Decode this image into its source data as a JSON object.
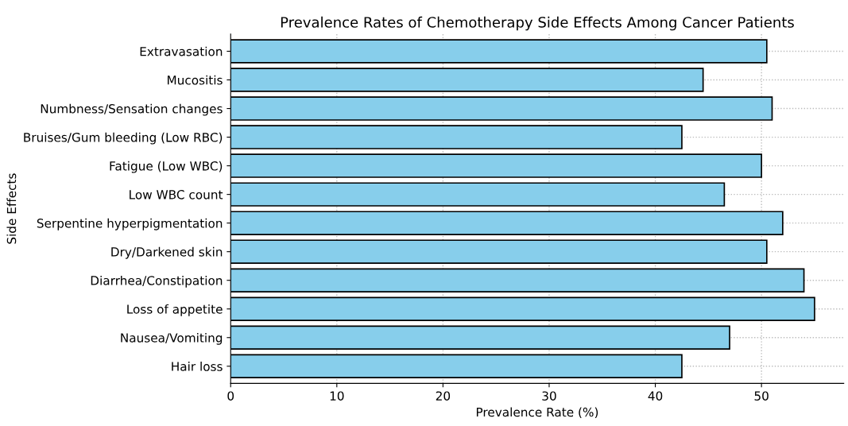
{
  "chart_data": {
    "type": "bar",
    "orientation": "horizontal",
    "title": "Prevalence Rates of Chemotherapy Side Effects Among Cancer Patients",
    "xlabel": "Prevalence Rate (%)",
    "ylabel": "Side Effects",
    "categories": [
      "Extravasation",
      "Mucositis",
      "Numbness/Sensation changes",
      "Bruises/Gum bleeding (Low RBC)",
      "Fatigue (Low WBC)",
      "Low WBC count",
      "Serpentine hyperpigmentation",
      "Dry/Darkened skin",
      "Diarrhea/Constipation",
      "Loss of appetite",
      "Nausea/Vomiting",
      "Hair loss"
    ],
    "values": [
      50.5,
      44.5,
      51,
      42.5,
      50,
      46.5,
      52,
      50.5,
      54,
      55,
      47,
      42.5
    ],
    "color": "#87ceeb",
    "xlim": [
      0,
      57.75
    ],
    "xticks": [
      0,
      10,
      20,
      30,
      40,
      50
    ],
    "grid": true
  }
}
